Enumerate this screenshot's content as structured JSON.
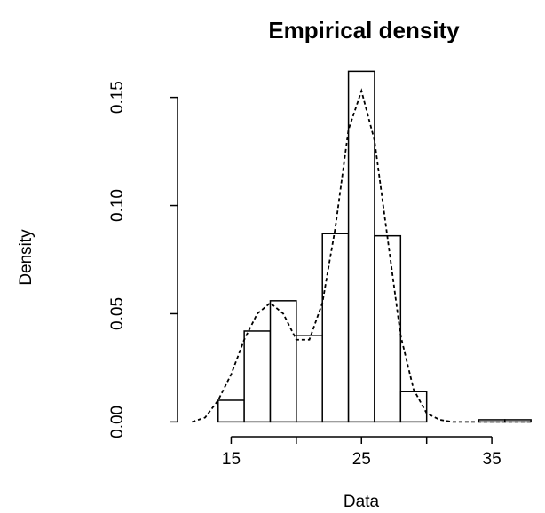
{
  "chart_data": {
    "type": "histogram",
    "title": "Empirical density",
    "xlabel": "Data",
    "ylabel": "Density",
    "bins": [
      14,
      16,
      18,
      20,
      22,
      24,
      26,
      28,
      30,
      32,
      34,
      36,
      38
    ],
    "values": [
      0.01,
      0.042,
      0.056,
      0.04,
      0.087,
      0.162,
      0.086,
      0.014,
      0,
      0,
      0.001,
      0.001
    ],
    "color": "#ffffff",
    "density": {
      "x": [
        12,
        13,
        14,
        15,
        16,
        17,
        18,
        19,
        20,
        21,
        22,
        23,
        24,
        25,
        26,
        27,
        28,
        29,
        30,
        31,
        32,
        38
      ],
      "values": [
        0,
        0.002,
        0.01,
        0.022,
        0.038,
        0.05,
        0.055,
        0.05,
        0.038,
        0.038,
        0.055,
        0.09,
        0.135,
        0.153,
        0.13,
        0.085,
        0.04,
        0.015,
        0.004,
        0.001,
        0,
        0
      ]
    },
    "xlim": [
      11.7,
      38.4
    ],
    "ylim": [
      -0.006,
      0.156
    ],
    "xticks": [
      15,
      {
        "value": 20,
        "label": null
      },
      25,
      {
        "value": 30,
        "label": null
      },
      35
    ],
    "yticks": [
      {
        "value": 0,
        "label": "0.00"
      },
      0.05,
      {
        "value": 0.1,
        "label": "0.10"
      },
      0.15
    ]
  }
}
